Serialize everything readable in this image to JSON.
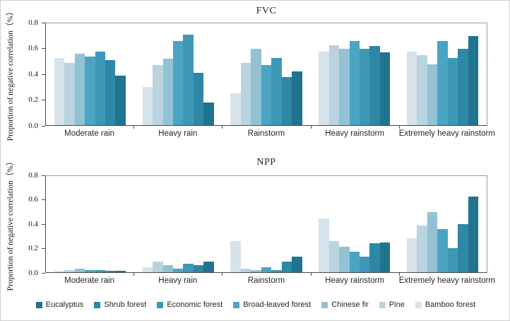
{
  "figure": {
    "type": "grouped-bar-figure",
    "panels": [
      "FVC",
      "NPP"
    ],
    "accent_colors": {
      "Eucalyptus": "#20748e",
      "Shrub forest": "#2e87a5",
      "Economic forest": "#3e98b6",
      "Broad-leaved forest": "#4ba4c2",
      "Chinese fir": "#93c2d3",
      "Pine": "#b9d3df",
      "Bamboo forest": "#d6e3ea"
    }
  },
  "chart_data": [
    {
      "type": "bar",
      "title": "FVC",
      "ylabel": "Proportion of negative correlation（%）",
      "ylim": [
        0,
        0.8
      ],
      "yticks": [
        0.0,
        0.2,
        0.4,
        0.6,
        0.8
      ],
      "grid": false,
      "legend_position": "bottom-shared",
      "bar_order": "within each group bars run left→right from lightest (Bamboo forest) to darkest (Eucalyptus), the reverse of legend order",
      "categories": [
        "Moderate rain",
        "Heavy rain",
        "Rainstorm",
        "Heavy rainstorm",
        "Extremely heavy rainstorm"
      ],
      "series": [
        {
          "name": "Eucalyptus",
          "color": "#20748e",
          "values": [
            0.39,
            0.18,
            0.42,
            0.57,
            0.7
          ]
        },
        {
          "name": "Shrub forest",
          "color": "#2e87a5",
          "values": [
            0.51,
            0.41,
            0.38,
            0.62,
            0.6
          ]
        },
        {
          "name": "Economic forest",
          "color": "#3e98b6",
          "values": [
            0.58,
            0.71,
            0.53,
            0.6,
            0.53
          ]
        },
        {
          "name": "Broad-leaved forest",
          "color": "#4ba4c2",
          "values": [
            0.54,
            0.66,
            0.47,
            0.66,
            0.66
          ]
        },
        {
          "name": "Chinese fir",
          "color": "#93c2d3",
          "values": [
            0.56,
            0.52,
            0.6,
            0.6,
            0.48
          ]
        },
        {
          "name": "Pine",
          "color": "#b9d3df",
          "values": [
            0.49,
            0.47,
            0.49,
            0.63,
            0.55
          ]
        },
        {
          "name": "Bamboo forest",
          "color": "#d6e3ea",
          "values": [
            0.53,
            0.3,
            0.25,
            0.58,
            0.58
          ]
        }
      ]
    },
    {
      "type": "bar",
      "title": "NPP",
      "ylabel": "Proportion of negative correlation（%）",
      "ylim": [
        0,
        0.8
      ],
      "yticks": [
        0.0,
        0.2,
        0.4,
        0.6,
        0.8
      ],
      "grid": false,
      "legend_position": "bottom-shared",
      "bar_order": "within each group bars run left→right from lightest (Bamboo forest) to darkest (Eucalyptus), the reverse of legend order",
      "categories": [
        "Moderate rain",
        "Heavy rain",
        "Rainstorm",
        "Heavy rainstorm",
        "Extremely heavy rainstorm"
      ],
      "series": [
        {
          "name": "Eucalyptus",
          "color": "#20748e",
          "values": [
            0.01,
            0.09,
            0.13,
            0.25,
            0.63
          ]
        },
        {
          "name": "Shrub forest",
          "color": "#2e87a5",
          "values": [
            0.01,
            0.06,
            0.09,
            0.24,
            0.4
          ]
        },
        {
          "name": "Economic forest",
          "color": "#3e98b6",
          "values": [
            0.02,
            0.07,
            0.02,
            0.13,
            0.2
          ]
        },
        {
          "name": "Broad-leaved forest",
          "color": "#4ba4c2",
          "values": [
            0.02,
            0.03,
            0.04,
            0.17,
            0.36
          ]
        },
        {
          "name": "Chinese fir",
          "color": "#93c2d3",
          "values": [
            0.03,
            0.06,
            0.02,
            0.21,
            0.5
          ]
        },
        {
          "name": "Pine",
          "color": "#b9d3df",
          "values": [
            0.02,
            0.09,
            0.03,
            0.26,
            0.39
          ]
        },
        {
          "name": "Bamboo forest",
          "color": "#d6e3ea",
          "values": [
            0.01,
            0.04,
            0.26,
            0.45,
            0.28
          ]
        }
      ]
    }
  ],
  "legend": {
    "items": [
      "Eucalyptus",
      "Shrub forest",
      "Economic forest",
      "Broad-leaved forest",
      "Chinese fir",
      "Pine",
      "Bamboo forest"
    ]
  }
}
